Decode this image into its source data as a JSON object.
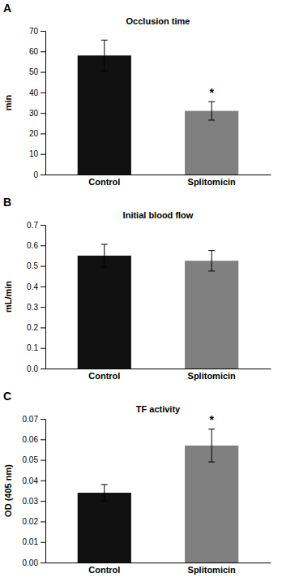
{
  "chart_data": [
    {
      "type": "bar",
      "label": "A",
      "title": "Occlusion time",
      "ylabel": "min",
      "categories": [
        "Control",
        "Splitomicin"
      ],
      "values": [
        58.0,
        31.0
      ],
      "errors": [
        7.5,
        4.5
      ],
      "colors": [
        "#111111",
        "#808080"
      ],
      "ylim": [
        0,
        70
      ],
      "yticks": [
        0,
        10,
        20,
        30,
        40,
        50,
        60,
        70
      ],
      "annotations": [
        {
          "text": "*",
          "x": "Splitomicin"
        }
      ]
    },
    {
      "type": "bar",
      "label": "B",
      "title": "Initial blood flow",
      "ylabel": "mL/min",
      "categories": [
        "Control",
        "Splitomicin"
      ],
      "values": [
        0.55,
        0.525
      ],
      "errors": [
        0.055,
        0.05
      ],
      "colors": [
        "#111111",
        "#808080"
      ],
      "ylim": [
        0.0,
        0.7
      ],
      "yticks": [
        {
          "value": 0.0,
          "label": "0.0"
        },
        0.1,
        0.2,
        0.3,
        0.4,
        0.5,
        0.6,
        0.7
      ]
    },
    {
      "type": "bar",
      "label": "C",
      "title": "TF activity",
      "ylabel": "OD (405 nm)",
      "categories": [
        "Control",
        "Splitomicin"
      ],
      "values": [
        0.034,
        0.057
      ],
      "errors": [
        0.004,
        0.008
      ],
      "colors": [
        "#111111",
        "#808080"
      ],
      "ylim": [
        0.0,
        0.07
      ],
      "yticks": [
        {
          "value": 0.0,
          "label": "0.00"
        },
        0.01,
        0.02,
        0.03,
        0.04,
        0.05,
        0.06,
        0.07
      ],
      "annotations": [
        {
          "text": "*",
          "x": "Splitomicin"
        }
      ]
    }
  ]
}
